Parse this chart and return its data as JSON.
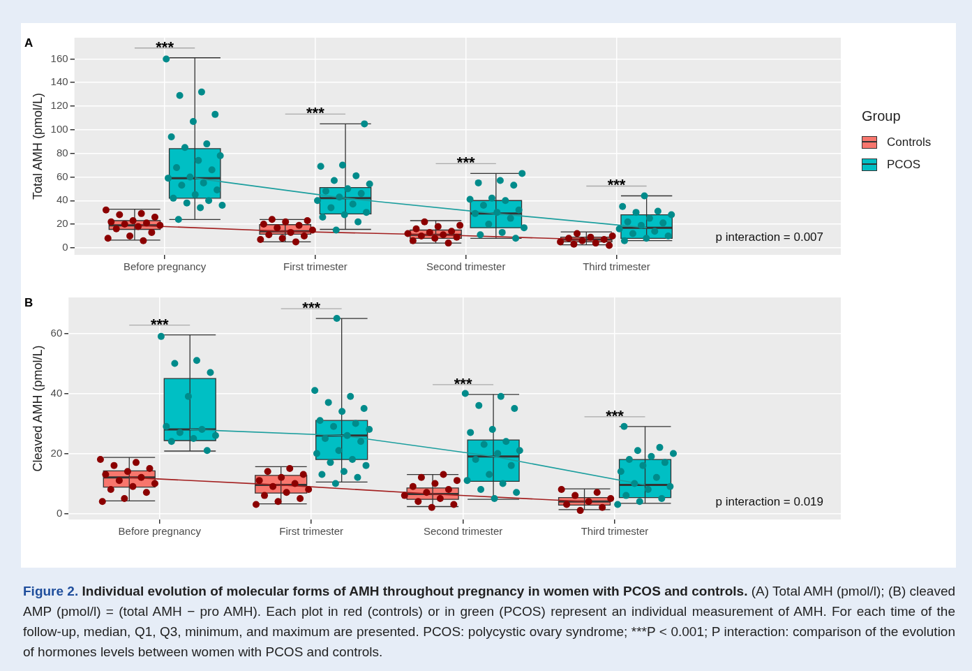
{
  "chart_data": [
    {
      "type": "box",
      "title": "A",
      "ylabel": "Total AMH (pmol/L)",
      "categories": [
        "Before pregnancy",
        "First trimester",
        "Second trimester",
        "Third trimester"
      ],
      "ylim": [
        -6,
        178
      ],
      "yticks": [
        0,
        20,
        40,
        60,
        80,
        100,
        120,
        140,
        160
      ],
      "grid": true,
      "legend": "right",
      "legend_title": "Group",
      "marker": "circle",
      "series": [
        {
          "name": "Controls",
          "color": "#f8766d",
          "boxes": [
            {
              "low": 6.5,
              "q1": 15.6,
              "median": 19,
              "q3": 23,
              "high": 32.7
            },
            {
              "low": 5,
              "q1": 11.5,
              "median": 14,
              "q3": 19.6,
              "high": 24
            },
            {
              "low": 4,
              "q1": 8,
              "median": 11,
              "q3": 15,
              "high": 23
            },
            {
              "low": 2.5,
              "q1": 5,
              "median": 7,
              "q3": 9,
              "high": 13.5
            }
          ]
        },
        {
          "name": "PCOS",
          "color": "#00bfc4",
          "boxes": [
            {
              "low": 24,
              "q1": 42,
              "median": 59,
              "q3": 84,
              "high": 161
            },
            {
              "low": 15.6,
              "q1": 28.7,
              "median": 42,
              "q3": 51,
              "high": 105
            },
            {
              "low": 8,
              "q1": 17,
              "median": 29,
              "q3": 40,
              "high": 63
            },
            {
              "low": 6,
              "q1": 8,
              "median": 17,
              "q3": 28,
              "high": 44
            }
          ]
        },
        {
          "type": "line",
          "color": "#a31f1f",
          "marker": "none",
          "x": [
            "Before pregnancy",
            "First trimester",
            "Second trimester",
            "Third trimester"
          ],
          "values": [
            19,
            14,
            11,
            7
          ]
        },
        {
          "type": "line",
          "color": "#1b9e9e",
          "marker": "none",
          "x": [
            "Before pregnancy",
            "First trimester",
            "Second trimester",
            "Third trimester"
          ],
          "values": [
            59,
            42,
            29,
            17
          ]
        },
        {
          "type": "scatter",
          "color": "#8b0000",
          "x": [
            "Before pregnancy",
            "Before pregnancy",
            "Before pregnancy",
            "Before pregnancy",
            "Before pregnancy",
            "Before pregnancy",
            "Before pregnancy",
            "Before pregnancy",
            "Before pregnancy",
            "Before pregnancy",
            "Before pregnancy",
            "Before pregnancy",
            "Before pregnancy",
            "Before pregnancy",
            "Before pregnancy",
            "First trimester",
            "First trimester",
            "First trimester",
            "First trimester",
            "First trimester",
            "First trimester",
            "First trimester",
            "First trimester",
            "First trimester",
            "First trimester",
            "First trimester",
            "First trimester",
            "First trimester",
            "Second trimester",
            "Second trimester",
            "Second trimester",
            "Second trimester",
            "Second trimester",
            "Second trimester",
            "Second trimester",
            "Second trimester",
            "Second trimester",
            "Second trimester",
            "Second trimester",
            "Second trimester",
            "Second trimester",
            "Third trimester",
            "Third trimester",
            "Third trimester",
            "Third trimester",
            "Third trimester",
            "Third trimester",
            "Third trimester",
            "Third trimester",
            "Third trimester",
            "Third trimester"
          ],
          "values": [
            32,
            29,
            28,
            26,
            23,
            22,
            21,
            20,
            19,
            18,
            16,
            13,
            10,
            8,
            6,
            24,
            23,
            22,
            20,
            19,
            17,
            15,
            13,
            11,
            10,
            8,
            7,
            5,
            22,
            19,
            18,
            16,
            14,
            13,
            12,
            11,
            10,
            9,
            8,
            6,
            4,
            12,
            10,
            9,
            8,
            7,
            6,
            5,
            4,
            3,
            2
          ]
        },
        {
          "type": "scatter",
          "color": "#008b8b",
          "x": [
            "Before pregnancy",
            "Before pregnancy",
            "Before pregnancy",
            "Before pregnancy",
            "Before pregnancy",
            "Before pregnancy",
            "Before pregnancy",
            "Before pregnancy",
            "Before pregnancy",
            "Before pregnancy",
            "Before pregnancy",
            "Before pregnancy",
            "Before pregnancy",
            "Before pregnancy",
            "Before pregnancy",
            "Before pregnancy",
            "Before pregnancy",
            "Before pregnancy",
            "Before pregnancy",
            "Before pregnancy",
            "Before pregnancy",
            "Before pregnancy",
            "Before pregnancy",
            "Before pregnancy",
            "First trimester",
            "First trimester",
            "First trimester",
            "First trimester",
            "First trimester",
            "First trimester",
            "First trimester",
            "First trimester",
            "First trimester",
            "First trimester",
            "First trimester",
            "First trimester",
            "First trimester",
            "First trimester",
            "First trimester",
            "First trimester",
            "First trimester",
            "First trimester",
            "Second trimester",
            "Second trimester",
            "Second trimester",
            "Second trimester",
            "Second trimester",
            "Second trimester",
            "Second trimester",
            "Second trimester",
            "Second trimester",
            "Second trimester",
            "Second trimester",
            "Second trimester",
            "Second trimester",
            "Second trimester",
            "Second trimester",
            "Second trimester",
            "Second trimester",
            "Third trimester",
            "Third trimester",
            "Third trimester",
            "Third trimester",
            "Third trimester",
            "Third trimester",
            "Third trimester",
            "Third trimester",
            "Third trimester",
            "Third trimester",
            "Third trimester",
            "Third trimester",
            "Third trimester",
            "Third trimester",
            "Third trimester"
          ],
          "values": [
            160,
            132,
            129,
            113,
            107,
            94,
            88,
            85,
            78,
            74,
            68,
            66,
            60,
            59,
            55,
            53,
            49,
            45,
            42,
            40,
            38,
            36,
            34,
            24,
            105,
            70,
            69,
            61,
            57,
            54,
            50,
            48,
            46,
            43,
            40,
            37,
            34,
            30,
            28,
            26,
            22,
            15,
            63,
            57,
            55,
            53,
            42,
            41,
            40,
            36,
            32,
            30,
            29,
            25,
            20,
            17,
            13,
            11,
            8,
            44,
            35,
            31,
            30,
            28,
            25,
            22,
            21,
            19,
            16,
            14,
            12,
            10,
            8,
            6
          ]
        }
      ],
      "annotations": [
        "***",
        "***",
        "***",
        "***",
        "p interaction = 0.007"
      ]
    },
    {
      "type": "box",
      "title": "B",
      "ylabel": "Cleaved AMH (pmol/L)",
      "categories": [
        "Before pregnancy",
        "First trimester",
        "Second trimester",
        "Third trimester"
      ],
      "ylim": [
        -2,
        72
      ],
      "yticks": [
        0,
        20,
        40,
        60
      ],
      "grid": true,
      "marker": "circle",
      "series": [
        {
          "color": "#f8766d",
          "boxes": [
            {
              "low": 4.2,
              "q1": 8.8,
              "median": 12,
              "q3": 14.2,
              "high": 18.7
            },
            {
              "low": 3.2,
              "q1": 6.8,
              "median": 9.5,
              "q3": 12.7,
              "high": 15.6
            },
            {
              "low": 2.3,
              "q1": 4.7,
              "median": 6.5,
              "q3": 8.5,
              "high": 13
            },
            {
              "low": 1.3,
              "q1": 2.8,
              "median": 4,
              "q3": 5.3,
              "high": 8.2
            }
          ]
        },
        {
          "color": "#00bfc4",
          "boxes": [
            {
              "low": 20.8,
              "q1": 24.3,
              "median": 28,
              "q3": 45,
              "high": 59.5
            },
            {
              "low": 10.5,
              "q1": 18,
              "median": 26,
              "q3": 31,
              "high": 65
            },
            {
              "low": 4.7,
              "q1": 10.7,
              "median": 19,
              "q3": 24.5,
              "high": 39.7
            },
            {
              "low": 3.4,
              "q1": 5.3,
              "median": 9.5,
              "q3": 18,
              "high": 29
            }
          ]
        },
        {
          "type": "line",
          "color": "#a31f1f",
          "marker": "none",
          "x": [
            "Before pregnancy",
            "First trimester",
            "Second trimester",
            "Third trimester"
          ],
          "values": [
            12,
            9.5,
            6.5,
            4
          ]
        },
        {
          "type": "line",
          "color": "#1b9e9e",
          "marker": "none",
          "x": [
            "Before pregnancy",
            "First trimester",
            "Second trimester",
            "Third trimester"
          ],
          "values": [
            28,
            26,
            19,
            9.5
          ]
        },
        {
          "type": "scatter",
          "color": "#8b0000",
          "x": [
            "Before pregnancy",
            "Before pregnancy",
            "Before pregnancy",
            "Before pregnancy",
            "Before pregnancy",
            "Before pregnancy",
            "Before pregnancy",
            "Before pregnancy",
            "Before pregnancy",
            "Before pregnancy",
            "Before pregnancy",
            "Before pregnancy",
            "Before pregnancy",
            "Before pregnancy",
            "First trimester",
            "First trimester",
            "First trimester",
            "First trimester",
            "First trimester",
            "First trimester",
            "First trimester",
            "First trimester",
            "First trimester",
            "First trimester",
            "First trimester",
            "First trimester",
            "First trimester",
            "Second trimester",
            "Second trimester",
            "Second trimester",
            "Second trimester",
            "Second trimester",
            "Second trimester",
            "Second trimester",
            "Second trimester",
            "Second trimester",
            "Second trimester",
            "Second trimester",
            "Second trimester",
            "Third trimester",
            "Third trimester",
            "Third trimester",
            "Third trimester",
            "Third trimester",
            "Third trimester",
            "Third trimester",
            "Third trimester"
          ],
          "values": [
            18,
            17,
            16,
            15,
            14,
            13,
            12,
            11,
            10,
            9,
            8,
            7,
            5,
            4,
            15,
            14,
            13,
            12,
            11,
            10,
            9,
            8,
            7,
            6,
            5,
            4,
            3,
            13,
            12,
            11,
            10,
            9,
            8,
            7,
            6,
            5,
            4,
            3,
            2,
            8,
            7,
            6,
            5,
            4,
            3,
            2,
            1
          ]
        },
        {
          "type": "scatter",
          "color": "#008b8b",
          "x": [
            "Before pregnancy",
            "Before pregnancy",
            "Before pregnancy",
            "Before pregnancy",
            "Before pregnancy",
            "Before pregnancy",
            "Before pregnancy",
            "Before pregnancy",
            "Before pregnancy",
            "Before pregnancy",
            "Before pregnancy",
            "Before pregnancy",
            "First trimester",
            "First trimester",
            "First trimester",
            "First trimester",
            "First trimester",
            "First trimester",
            "First trimester",
            "First trimester",
            "First trimester",
            "First trimester",
            "First trimester",
            "First trimester",
            "First trimester",
            "First trimester",
            "First trimester",
            "First trimester",
            "First trimester",
            "First trimester",
            "First trimester",
            "First trimester",
            "First trimester",
            "First trimester",
            "Second trimester",
            "Second trimester",
            "Second trimester",
            "Second trimester",
            "Second trimester",
            "Second trimester",
            "Second trimester",
            "Second trimester",
            "Second trimester",
            "Second trimester",
            "Second trimester",
            "Second trimester",
            "Second trimester",
            "Second trimester",
            "Second trimester",
            "Second trimester",
            "Second trimester",
            "Second trimester",
            "Third trimester",
            "Third trimester",
            "Third trimester",
            "Third trimester",
            "Third trimester",
            "Third trimester",
            "Third trimester",
            "Third trimester",
            "Third trimester",
            "Third trimester",
            "Third trimester",
            "Third trimester",
            "Third trimester",
            "Third trimester",
            "Third trimester",
            "Third trimester",
            "Third trimester"
          ],
          "values": [
            59,
            51,
            50,
            47,
            39,
            29,
            28,
            27,
            26,
            25,
            24,
            21,
            65,
            41,
            39,
            37,
            35,
            34,
            31,
            30,
            29,
            28,
            26,
            25,
            24,
            21,
            20,
            18,
            17,
            16,
            14,
            13,
            12,
            10,
            40,
            39,
            36,
            35,
            28,
            27,
            24,
            23,
            21,
            20,
            18,
            16,
            13,
            11,
            10,
            8,
            7,
            5,
            29,
            22,
            21,
            20,
            19,
            18,
            17,
            16,
            14,
            12,
            10,
            9,
            8,
            6,
            5,
            4,
            3
          ]
        }
      ],
      "annotations": [
        "***",
        "***",
        "***",
        "***",
        "p interaction = 0.019",
        "Figure 2.",
        "Individual evolution of molecular forms of AMH throughout pregnancy in women with PCOS and controls.",
        "(A) Total AMH (pmol/l); (B) cleaved AMP (pmol/l) = (total AMH − pro AMH). Each plot in red (controls) or in green (PCOS) represent an individual measurement of AMH. For each time of the follow-up, median, Q1, Q3, minimum, and maximum are presented. PCOS: polycystic ovary syndrome; ***P < 0.001; P interaction: comparison of the evolution of hormones levels between women with PCOS and controls."
      ]
    }
  ]
}
